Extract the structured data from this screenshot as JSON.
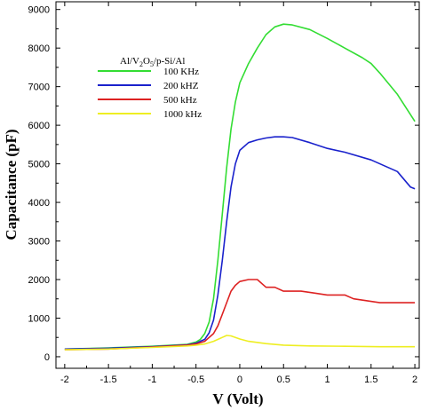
{
  "chart_data": {
    "type": "line",
    "xlabel": "V (Volt)",
    "ylabel": "Capacitance (pF)",
    "xlim": [
      -2.1,
      2.05
    ],
    "ylim": [
      -300,
      9200
    ],
    "x_ticks": [
      -2,
      -1.5,
      -1,
      -0.5,
      0,
      0.5,
      1,
      1.5,
      2
    ],
    "x_tick_labels": [
      "-2",
      "-1.5",
      "-1",
      "-0.5",
      "0",
      "0.5",
      "1",
      "1.5",
      "2"
    ],
    "y_ticks": [
      0,
      1000,
      2000,
      3000,
      4000,
      5000,
      6000,
      7000,
      8000,
      9000
    ],
    "y_tick_labels": [
      "0",
      "1000",
      "2000",
      "3000",
      "4000",
      "5000",
      "6000",
      "7000",
      "8000",
      "9000"
    ],
    "grid": false,
    "legend": {
      "title_parts": [
        "Al/V",
        "2",
        "O",
        "5",
        "/p-Si/Al"
      ],
      "placement": "upper-left"
    },
    "series": [
      {
        "name": "100 KHz",
        "color": "#33dd33",
        "x": [
          -2,
          -1.5,
          -1,
          -0.6,
          -0.5,
          -0.45,
          -0.4,
          -0.35,
          -0.3,
          -0.25,
          -0.2,
          -0.15,
          -0.1,
          -0.05,
          0,
          0.1,
          0.2,
          0.3,
          0.4,
          0.5,
          0.6,
          0.8,
          1.0,
          1.2,
          1.4,
          1.5,
          1.6,
          1.8,
          2.0
        ],
        "y": [
          200,
          230,
          270,
          320,
          380,
          450,
          600,
          900,
          1500,
          2500,
          3700,
          4900,
          5900,
          6600,
          7100,
          7600,
          8000,
          8350,
          8550,
          8620,
          8600,
          8480,
          8250,
          8000,
          7750,
          7600,
          7350,
          6800,
          6100
        ]
      },
      {
        "name": "200 kHZ",
        "color": "#1a22cc",
        "x": [
          -2,
          -1.5,
          -1,
          -0.6,
          -0.5,
          -0.4,
          -0.35,
          -0.3,
          -0.25,
          -0.2,
          -0.15,
          -0.1,
          -0.05,
          0,
          0.1,
          0.2,
          0.3,
          0.4,
          0.5,
          0.6,
          0.8,
          1.0,
          1.2,
          1.5,
          1.8,
          1.95,
          2.0
        ],
        "y": [
          200,
          220,
          260,
          310,
          350,
          450,
          620,
          950,
          1600,
          2500,
          3500,
          4400,
          5000,
          5350,
          5550,
          5620,
          5670,
          5700,
          5700,
          5680,
          5550,
          5400,
          5300,
          5100,
          4800,
          4400,
          4350
        ]
      },
      {
        "name": "500 kHz",
        "color": "#dd2222",
        "x": [
          -2,
          -1.5,
          -1,
          -0.6,
          -0.5,
          -0.4,
          -0.3,
          -0.25,
          -0.2,
          -0.15,
          -0.1,
          -0.05,
          0,
          0.1,
          0.2,
          0.3,
          0.4,
          0.5,
          0.7,
          0.85,
          1.0,
          1.2,
          1.3,
          1.6,
          1.8,
          2.0
        ],
        "y": [
          180,
          200,
          250,
          300,
          330,
          400,
          600,
          800,
          1100,
          1400,
          1700,
          1850,
          1950,
          2000,
          2000,
          1800,
          1800,
          1700,
          1700,
          1650,
          1600,
          1600,
          1500,
          1400,
          1400,
          1400
        ]
      },
      {
        "name": "1000 kHz",
        "color": "#eeee22",
        "x": [
          -2,
          -1.5,
          -1,
          -0.6,
          -0.5,
          -0.4,
          -0.3,
          -0.2,
          -0.15,
          -0.1,
          -0.05,
          0,
          0.1,
          0.3,
          0.5,
          0.8,
          1.2,
          1.6,
          2.0
        ],
        "y": [
          180,
          200,
          240,
          280,
          300,
          330,
          400,
          500,
          550,
          540,
          500,
          460,
          400,
          340,
          300,
          280,
          270,
          260,
          260
        ]
      }
    ]
  }
}
